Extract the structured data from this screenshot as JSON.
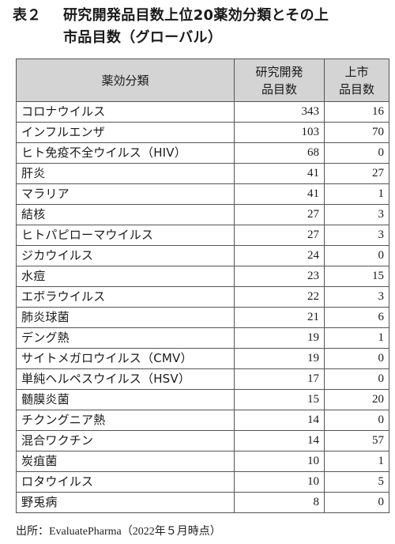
{
  "caption": {
    "label": "表２",
    "line1": "研究開発品目数上位20薬効分類とその上",
    "line2": "市品目数（グローバル）"
  },
  "table": {
    "headers": {
      "category": "薬効分類",
      "dev_line1": "研究開発",
      "dev_line2": "品目数",
      "mkt_line1": "上市",
      "mkt_line2": "品目数"
    },
    "rows": [
      {
        "name": "コロナウイルス",
        "dev": "343",
        "mkt": "16"
      },
      {
        "name": "インフルエンザ",
        "dev": "103",
        "mkt": "70"
      },
      {
        "name": "ヒト免疫不全ウイルス（HIV）",
        "dev": "68",
        "mkt": "0"
      },
      {
        "name": "肝炎",
        "dev": "41",
        "mkt": "27"
      },
      {
        "name": "マラリア",
        "dev": "41",
        "mkt": "1"
      },
      {
        "name": "結核",
        "dev": "27",
        "mkt": "3"
      },
      {
        "name": "ヒトパピローマウイルス",
        "dev": "27",
        "mkt": "3"
      },
      {
        "name": "ジカウイルス",
        "dev": "24",
        "mkt": "0"
      },
      {
        "name": "水痘",
        "dev": "23",
        "mkt": "15"
      },
      {
        "name": "エボラウイルス",
        "dev": "22",
        "mkt": "3"
      },
      {
        "name": "肺炎球菌",
        "dev": "21",
        "mkt": "6"
      },
      {
        "name": "デング熱",
        "dev": "19",
        "mkt": "1"
      },
      {
        "name": "サイトメガロウイルス（CMV）",
        "dev": "19",
        "mkt": "0"
      },
      {
        "name": "単純ヘルペスウイルス（HSV）",
        "dev": "17",
        "mkt": "0"
      },
      {
        "name": "髄膜炎菌",
        "dev": "15",
        "mkt": "20"
      },
      {
        "name": "チクングニア熱",
        "dev": "14",
        "mkt": "0"
      },
      {
        "name": "混合ワクチン",
        "dev": "14",
        "mkt": "57"
      },
      {
        "name": "炭疽菌",
        "dev": "10",
        "mkt": "1"
      },
      {
        "name": "ロタウイルス",
        "dev": "10",
        "mkt": "5"
      },
      {
        "name": "野兎病",
        "dev": "8",
        "mkt": "0"
      }
    ]
  },
  "source": "出所：EvaluatePharma（2022年５月時点）",
  "colors": {
    "header_bg": "#d4d4d4",
    "border": "#555555"
  }
}
